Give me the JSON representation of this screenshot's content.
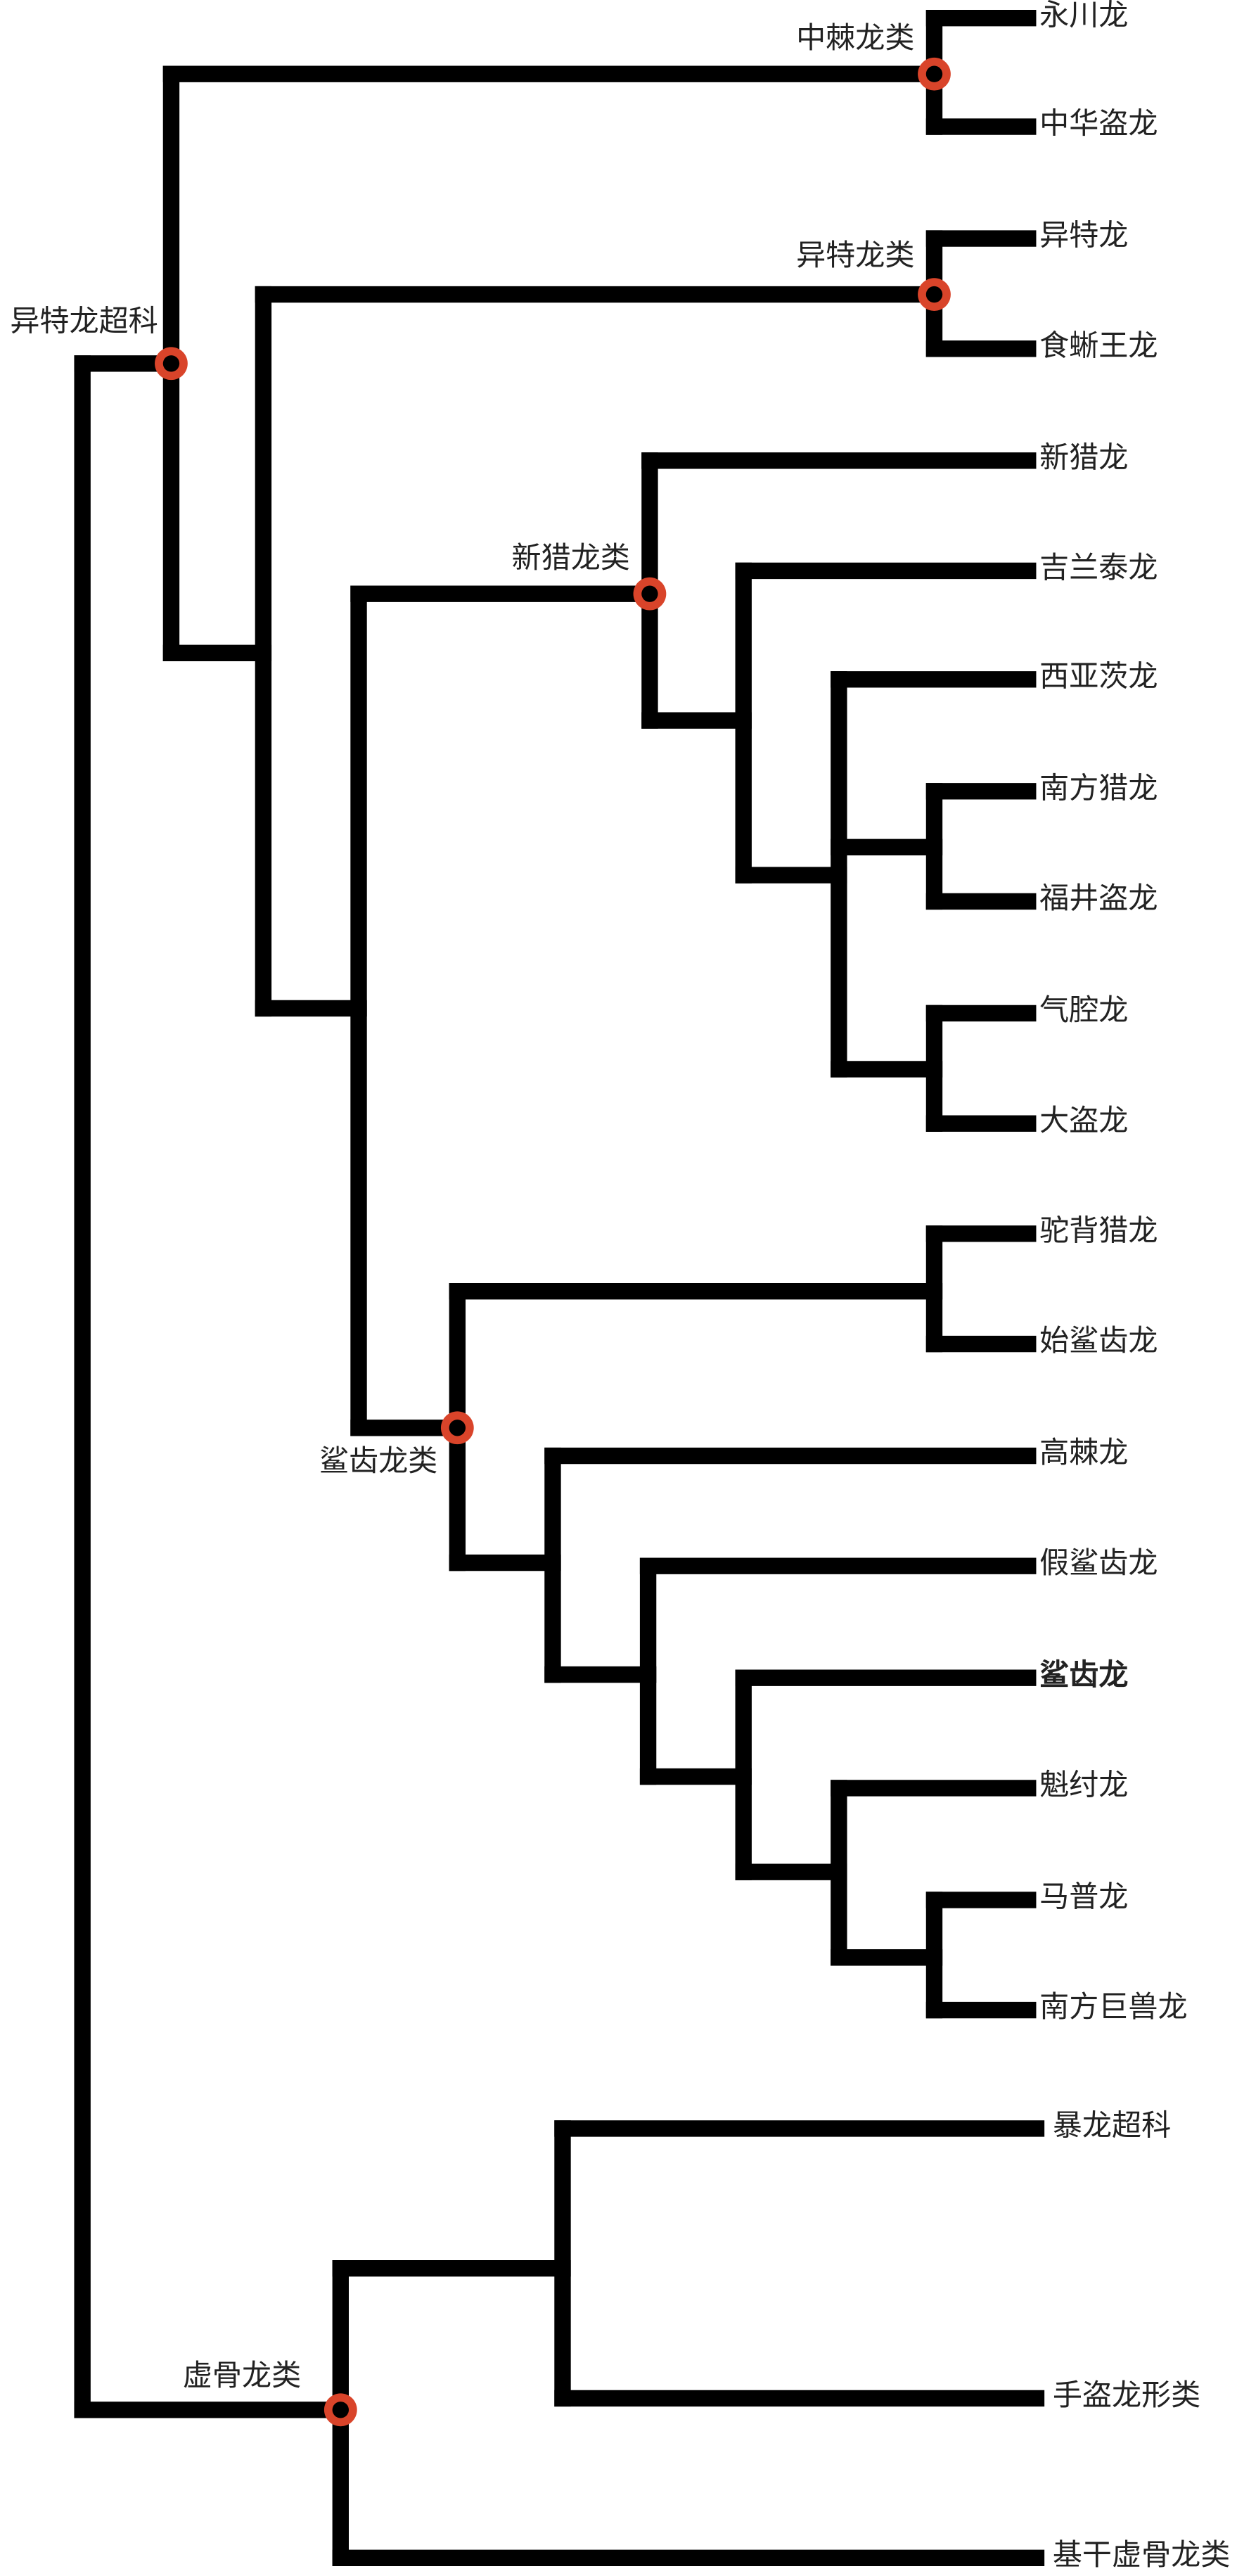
{
  "nodes": [
    {
      "label": "中棘龙类"
    },
    {
      "label": "异特龙类"
    },
    {
      "label": "异特龙超科"
    },
    {
      "label": "新猎龙类"
    },
    {
      "label": "鲨齿龙类"
    },
    {
      "label": "虚骨龙类"
    }
  ],
  "leaves": [
    {
      "label": "永川龙"
    },
    {
      "label": "中华盗龙"
    },
    {
      "label": "异特龙"
    },
    {
      "label": "食蜥王龙"
    },
    {
      "label": "新猎龙"
    },
    {
      "label": "吉兰泰龙"
    },
    {
      "label": "西亚茨龙"
    },
    {
      "label": "南方猎龙"
    },
    {
      "label": "福井盗龙"
    },
    {
      "label": "气腔龙"
    },
    {
      "label": "大盗龙"
    },
    {
      "label": "驼背猎龙"
    },
    {
      "label": "始鲨齿龙"
    },
    {
      "label": "高棘龙"
    },
    {
      "label": "假鲨齿龙"
    },
    {
      "label": "鲨齿龙",
      "highlighted": true
    },
    {
      "label": "魁纣龙"
    },
    {
      "label": "马普龙"
    },
    {
      "label": "南方巨兽龙"
    },
    {
      "label": "暴龙超科"
    },
    {
      "label": "手盗龙形类"
    },
    {
      "label": "基干虚骨龙类"
    }
  ]
}
